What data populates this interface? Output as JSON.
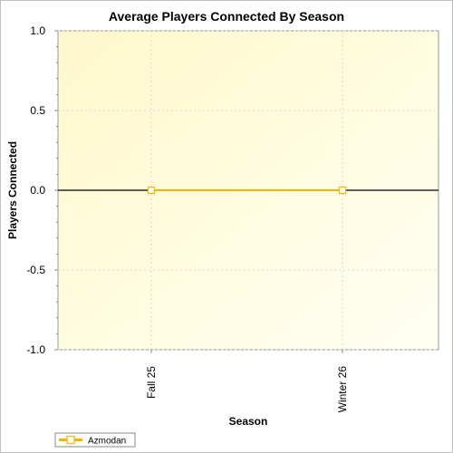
{
  "chart_data": {
    "type": "line",
    "title": "Average Players Connected By Season",
    "xlabel": "Season",
    "ylabel": "Players Connected",
    "categories": [
      "Fall 25",
      "Winter 26"
    ],
    "series": [
      {
        "name": "Azmodan",
        "values": [
          0,
          0
        ],
        "color": "#f4b400"
      }
    ],
    "ylim": [
      -1.0,
      1.0
    ],
    "yticks": [
      "1.0",
      "0.5",
      "0.0",
      "-0.5",
      "-1.0"
    ],
    "grid": true,
    "legend_position": "bottom-left",
    "plot_background": "#fffff0"
  }
}
